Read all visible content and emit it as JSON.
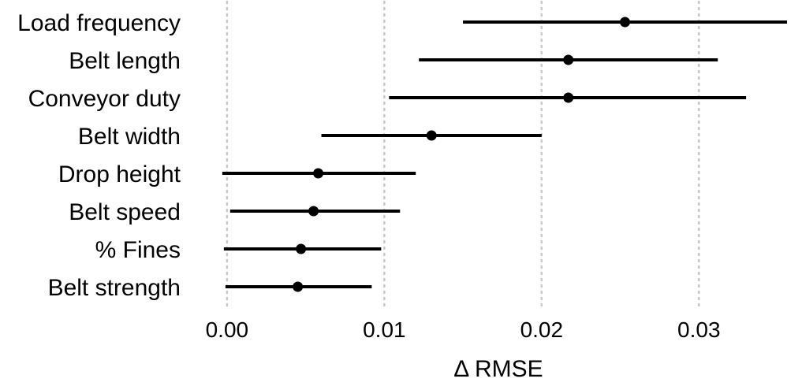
{
  "chart_data": {
    "type": "scatter",
    "subtype": "dot-and-interval",
    "xlabel": "Δ RMSE",
    "ylabel": "",
    "xlim": [
      -0.0025,
      0.0357
    ],
    "xticks": [
      0.0,
      0.01,
      0.02,
      0.03
    ],
    "xtick_labels": [
      "0.00",
      "0.01",
      "0.02",
      "0.03"
    ],
    "grid": "vertical dotted at x ticks",
    "legend": "none",
    "colors": {
      "points": "#000000",
      "intervals": "#000000",
      "grid": "#c8c8c8"
    },
    "rows": [
      {
        "label": "Load frequency",
        "estimate": 0.0253,
        "lower": 0.015,
        "upper": 0.0356
      },
      {
        "label": "Belt length",
        "estimate": 0.0217,
        "lower": 0.0122,
        "upper": 0.0312
      },
      {
        "label": "Conveyor duty",
        "estimate": 0.0217,
        "lower": 0.0103,
        "upper": 0.033
      },
      {
        "label": "Belt width",
        "estimate": 0.013,
        "lower": 0.006,
        "upper": 0.02
      },
      {
        "label": "Drop height",
        "estimate": 0.0058,
        "lower": -0.0003,
        "upper": 0.012
      },
      {
        "label": "Belt speed",
        "estimate": 0.0055,
        "lower": 0.0002,
        "upper": 0.011
      },
      {
        "label": "% Fines",
        "estimate": 0.0047,
        "lower": -0.0002,
        "upper": 0.0098
      },
      {
        "label": "Belt strength",
        "estimate": 0.0045,
        "lower": -0.0001,
        "upper": 0.0092
      }
    ]
  }
}
